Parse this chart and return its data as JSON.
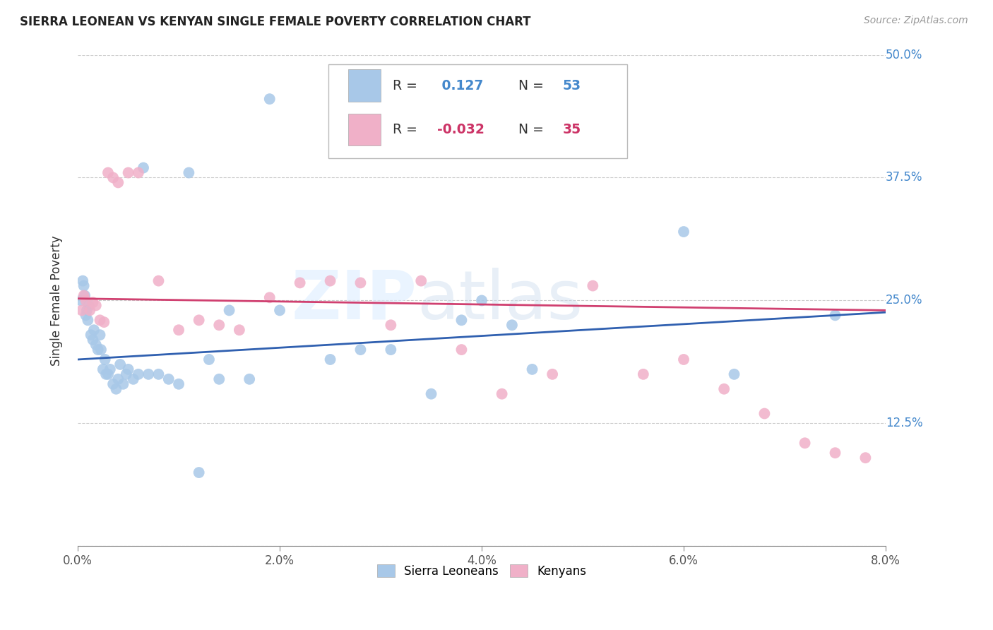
{
  "title": "SIERRA LEONEAN VS KENYAN SINGLE FEMALE POVERTY CORRELATION CHART",
  "source": "Source: ZipAtlas.com",
  "ylabel": "Single Female Poverty",
  "xlim": [
    0.0,
    0.08
  ],
  "ylim": [
    0.0,
    0.5
  ],
  "xticks": [
    0.0,
    0.02,
    0.04,
    0.06,
    0.08
  ],
  "yticks": [
    0.0,
    0.125,
    0.25,
    0.375,
    0.5
  ],
  "xticklabels": [
    "0.0%",
    "2.0%",
    "4.0%",
    "6.0%",
    "8.0%"
  ],
  "yticklabels": [
    "",
    "12.5%",
    "25.0%",
    "37.5%",
    "50.0%"
  ],
  "blue_R": 0.127,
  "blue_N": 53,
  "pink_R": -0.032,
  "pink_N": 35,
  "blue_color": "#a8c8e8",
  "pink_color": "#f0b0c8",
  "blue_line_color": "#3060b0",
  "pink_line_color": "#d04070",
  "blue_label": "Sierra Leoneans",
  "pink_label": "Kenyans",
  "background_color": "#ffffff",
  "grid_color": "#cccccc",
  "blue_line_x0": 0.0,
  "blue_line_x1": 0.08,
  "blue_line_y0": 0.19,
  "blue_line_y1": 0.238,
  "pink_line_x0": 0.0,
  "pink_line_x1": 0.08,
  "pink_line_y0": 0.252,
  "pink_line_y1": 0.24,
  "blue_x": [
    0.0003,
    0.0005,
    0.0006,
    0.0007,
    0.0008,
    0.0009,
    0.001,
    0.0011,
    0.0013,
    0.0015,
    0.0016,
    0.0018,
    0.002,
    0.0022,
    0.0023,
    0.0025,
    0.0027,
    0.0028,
    0.003,
    0.0032,
    0.0035,
    0.0038,
    0.004,
    0.0042,
    0.0045,
    0.0048,
    0.005,
    0.0055,
    0.006,
    0.0065,
    0.007,
    0.008,
    0.009,
    0.01,
    0.011,
    0.012,
    0.013,
    0.014,
    0.015,
    0.017,
    0.019,
    0.02,
    0.025,
    0.028,
    0.031,
    0.035,
    0.038,
    0.04,
    0.043,
    0.045,
    0.06,
    0.065,
    0.075
  ],
  "blue_y": [
    0.25,
    0.27,
    0.265,
    0.255,
    0.235,
    0.24,
    0.23,
    0.245,
    0.215,
    0.21,
    0.22,
    0.205,
    0.2,
    0.215,
    0.2,
    0.18,
    0.19,
    0.175,
    0.175,
    0.18,
    0.165,
    0.16,
    0.17,
    0.185,
    0.165,
    0.175,
    0.18,
    0.17,
    0.175,
    0.385,
    0.175,
    0.175,
    0.17,
    0.165,
    0.38,
    0.075,
    0.19,
    0.17,
    0.24,
    0.17,
    0.455,
    0.24,
    0.19,
    0.2,
    0.2,
    0.155,
    0.23,
    0.25,
    0.225,
    0.18,
    0.32,
    0.175,
    0.235
  ],
  "pink_x": [
    0.0004,
    0.0006,
    0.0008,
    0.0012,
    0.0015,
    0.0018,
    0.0022,
    0.0026,
    0.003,
    0.0035,
    0.004,
    0.005,
    0.006,
    0.008,
    0.01,
    0.012,
    0.014,
    0.016,
    0.019,
    0.022,
    0.025,
    0.028,
    0.031,
    0.034,
    0.038,
    0.042,
    0.047,
    0.051,
    0.056,
    0.06,
    0.064,
    0.068,
    0.072,
    0.075,
    0.078
  ],
  "pink_y": [
    0.24,
    0.255,
    0.25,
    0.24,
    0.248,
    0.245,
    0.23,
    0.228,
    0.38,
    0.375,
    0.37,
    0.38,
    0.38,
    0.27,
    0.22,
    0.23,
    0.225,
    0.22,
    0.253,
    0.268,
    0.27,
    0.268,
    0.225,
    0.27,
    0.2,
    0.155,
    0.175,
    0.265,
    0.175,
    0.19,
    0.16,
    0.135,
    0.105,
    0.095,
    0.09
  ]
}
